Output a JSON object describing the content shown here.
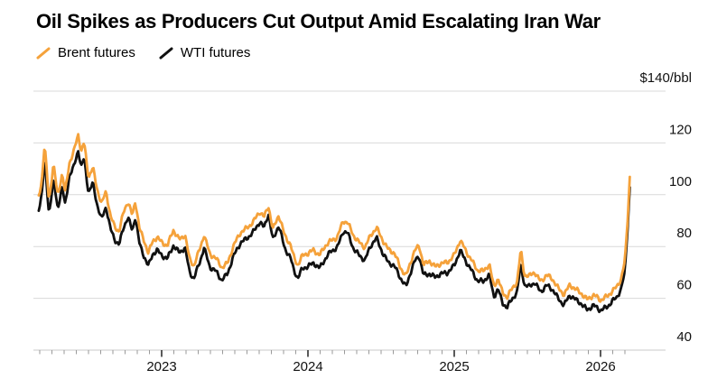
{
  "header": {
    "title": "Oil Spikes as Producers Cut Output Amid Escalating Iran War"
  },
  "legend": {
    "items": [
      {
        "label": "Brent futures",
        "color": "#F5A23B",
        "mark": "slash-icon"
      },
      {
        "label": "WTI futures",
        "color": "#111111",
        "mark": "slash-icon"
      }
    ]
  },
  "axis": {
    "unit_label": "$140/bbl",
    "y_tick_labels": [
      "120",
      "100",
      "80",
      "60",
      "40"
    ],
    "x_year_labels": [
      "2023",
      "2024",
      "2025",
      "2026"
    ]
  },
  "colors": {
    "brent": "#F5A23B",
    "wti": "#111111",
    "gridline": "#d9d9d9",
    "axis_baseline": "#c9c9c9",
    "minor_tick": "#9a9a9a",
    "major_tick": "#222222",
    "label_text": "#111111"
  },
  "chart_data": {
    "type": "line",
    "title": "Oil Spikes as Producers Cut Output Amid Escalating Iran War",
    "ylabel": "$/bbl",
    "xlabel": "",
    "x_range": [
      2022.16,
      2026.2
    ],
    "y_range": [
      40,
      140
    ],
    "y_gridlines": [
      140,
      120,
      100,
      80,
      60,
      40
    ],
    "x_year_ticks": [
      2023,
      2024,
      2025,
      2026
    ],
    "grid": "horizontal",
    "legend_position": "top-left",
    "series": [
      {
        "name": "WTI futures",
        "color": "#111111",
        "points": [
          [
            2022.16,
            94
          ],
          [
            2022.18,
            100
          ],
          [
            2022.2,
            114
          ],
          [
            2022.23,
            93
          ],
          [
            2022.26,
            106
          ],
          [
            2022.29,
            94
          ],
          [
            2022.32,
            103
          ],
          [
            2022.34,
            96
          ],
          [
            2022.37,
            108
          ],
          [
            2022.4,
            111
          ],
          [
            2022.43,
            117
          ],
          [
            2022.45,
            110
          ],
          [
            2022.47,
            114
          ],
          [
            2022.5,
            101
          ],
          [
            2022.53,
            105
          ],
          [
            2022.56,
            96
          ],
          [
            2022.59,
            90
          ],
          [
            2022.62,
            95
          ],
          [
            2022.65,
            87
          ],
          [
            2022.68,
            83
          ],
          [
            2022.71,
            81
          ],
          [
            2022.74,
            87
          ],
          [
            2022.77,
            91
          ],
          [
            2022.8,
            86
          ],
          [
            2022.82,
            92
          ],
          [
            2022.85,
            81
          ],
          [
            2022.88,
            76
          ],
          [
            2022.91,
            72
          ],
          [
            2022.94,
            77
          ],
          [
            2022.97,
            79
          ],
          [
            2023.0,
            77
          ],
          [
            2023.04,
            75
          ],
          [
            2023.08,
            80
          ],
          [
            2023.12,
            78
          ],
          [
            2023.16,
            80
          ],
          [
            2023.19,
            70
          ],
          [
            2023.22,
            67
          ],
          [
            2023.26,
            74
          ],
          [
            2023.29,
            80
          ],
          [
            2023.33,
            72
          ],
          [
            2023.37,
            70
          ],
          [
            2023.41,
            67
          ],
          [
            2023.45,
            70
          ],
          [
            2023.49,
            76
          ],
          [
            2023.54,
            81
          ],
          [
            2023.59,
            84
          ],
          [
            2023.63,
            86
          ],
          [
            2023.67,
            89
          ],
          [
            2023.7,
            87
          ],
          [
            2023.73,
            93
          ],
          [
            2023.76,
            83
          ],
          [
            2023.8,
            88
          ],
          [
            2023.84,
            79
          ],
          [
            2023.88,
            76
          ],
          [
            2023.9,
            72
          ],
          [
            2023.93,
            68
          ],
          [
            2023.96,
            71
          ],
          [
            2024.0,
            72
          ],
          [
            2024.04,
            74
          ],
          [
            2024.08,
            72
          ],
          [
            2024.12,
            75
          ],
          [
            2024.16,
            78
          ],
          [
            2024.2,
            80
          ],
          [
            2024.24,
            86
          ],
          [
            2024.27,
            85
          ],
          [
            2024.31,
            79
          ],
          [
            2024.35,
            77
          ],
          [
            2024.39,
            75
          ],
          [
            2024.43,
            80
          ],
          [
            2024.47,
            83
          ],
          [
            2024.51,
            78
          ],
          [
            2024.55,
            74
          ],
          [
            2024.59,
            72
          ],
          [
            2024.63,
            68
          ],
          [
            2024.67,
            65
          ],
          [
            2024.7,
            70
          ],
          [
            2024.73,
            74
          ],
          [
            2024.76,
            76
          ],
          [
            2024.79,
            69
          ],
          [
            2024.83,
            70
          ],
          [
            2024.87,
            68
          ],
          [
            2024.91,
            69
          ],
          [
            2024.95,
            70
          ],
          [
            2025.0,
            73
          ],
          [
            2025.04,
            78
          ],
          [
            2025.08,
            74
          ],
          [
            2025.12,
            71
          ],
          [
            2025.16,
            67
          ],
          [
            2025.2,
            66
          ],
          [
            2025.24,
            69
          ],
          [
            2025.27,
            61
          ],
          [
            2025.3,
            64
          ],
          [
            2025.33,
            58
          ],
          [
            2025.36,
            56
          ],
          [
            2025.4,
            60
          ],
          [
            2025.43,
            63
          ],
          [
            2025.455,
            74
          ],
          [
            2025.48,
            65
          ],
          [
            2025.51,
            64
          ],
          [
            2025.55,
            66
          ],
          [
            2025.59,
            63
          ],
          [
            2025.63,
            65
          ],
          [
            2025.67,
            63
          ],
          [
            2025.71,
            60
          ],
          [
            2025.75,
            58
          ],
          [
            2025.79,
            61
          ],
          [
            2025.83,
            59
          ],
          [
            2025.87,
            58
          ],
          [
            2025.91,
            56
          ],
          [
            2025.95,
            57
          ],
          [
            2026.0,
            55
          ],
          [
            2026.04,
            57
          ],
          [
            2026.08,
            59
          ],
          [
            2026.11,
            60
          ],
          [
            2026.14,
            63
          ],
          [
            2026.165,
            70
          ],
          [
            2026.185,
            87
          ],
          [
            2026.2,
            103
          ]
        ]
      },
      {
        "name": "Brent futures",
        "color": "#F5A23B",
        "points": [
          [
            2022.16,
            99
          ],
          [
            2022.18,
            105
          ],
          [
            2022.2,
            120
          ],
          [
            2022.23,
            98
          ],
          [
            2022.26,
            112
          ],
          [
            2022.29,
            99
          ],
          [
            2022.32,
            108
          ],
          [
            2022.34,
            101
          ],
          [
            2022.37,
            113
          ],
          [
            2022.4,
            117
          ],
          [
            2022.43,
            123
          ],
          [
            2022.45,
            116
          ],
          [
            2022.47,
            120
          ],
          [
            2022.5,
            107
          ],
          [
            2022.53,
            111
          ],
          [
            2022.56,
            102
          ],
          [
            2022.59,
            96
          ],
          [
            2022.62,
            101
          ],
          [
            2022.65,
            92
          ],
          [
            2022.68,
            88
          ],
          [
            2022.71,
            86
          ],
          [
            2022.74,
            93
          ],
          [
            2022.77,
            97
          ],
          [
            2022.8,
            92
          ],
          [
            2022.82,
            98
          ],
          [
            2022.85,
            87
          ],
          [
            2022.88,
            82
          ],
          [
            2022.91,
            77
          ],
          [
            2022.94,
            82
          ],
          [
            2022.97,
            84
          ],
          [
            2023.0,
            82
          ],
          [
            2023.04,
            80
          ],
          [
            2023.08,
            86
          ],
          [
            2023.12,
            83
          ],
          [
            2023.16,
            85
          ],
          [
            2023.19,
            75
          ],
          [
            2023.22,
            72
          ],
          [
            2023.26,
            79
          ],
          [
            2023.29,
            85
          ],
          [
            2023.33,
            77
          ],
          [
            2023.37,
            75
          ],
          [
            2023.41,
            72
          ],
          [
            2023.45,
            74
          ],
          [
            2023.49,
            80
          ],
          [
            2023.54,
            85
          ],
          [
            2023.59,
            88
          ],
          [
            2023.63,
            90
          ],
          [
            2023.67,
            93
          ],
          [
            2023.7,
            91
          ],
          [
            2023.73,
            96
          ],
          [
            2023.76,
            87
          ],
          [
            2023.8,
            92
          ],
          [
            2023.84,
            84
          ],
          [
            2023.88,
            81
          ],
          [
            2023.9,
            77
          ],
          [
            2023.93,
            73
          ],
          [
            2023.96,
            76
          ],
          [
            2024.0,
            77
          ],
          [
            2024.04,
            79
          ],
          [
            2024.08,
            77
          ],
          [
            2024.12,
            80
          ],
          [
            2024.16,
            82
          ],
          [
            2024.2,
            84
          ],
          [
            2024.24,
            90
          ],
          [
            2024.27,
            89
          ],
          [
            2024.31,
            84
          ],
          [
            2024.35,
            82
          ],
          [
            2024.39,
            80
          ],
          [
            2024.43,
            84
          ],
          [
            2024.47,
            87
          ],
          [
            2024.51,
            83
          ],
          [
            2024.55,
            79
          ],
          [
            2024.59,
            77
          ],
          [
            2024.63,
            72
          ],
          [
            2024.67,
            69
          ],
          [
            2024.7,
            74
          ],
          [
            2024.73,
            78
          ],
          [
            2024.76,
            80
          ],
          [
            2024.79,
            73
          ],
          [
            2024.83,
            75
          ],
          [
            2024.87,
            72
          ],
          [
            2024.91,
            73
          ],
          [
            2024.95,
            74
          ],
          [
            2025.0,
            77
          ],
          [
            2025.04,
            82
          ],
          [
            2025.08,
            78
          ],
          [
            2025.12,
            75
          ],
          [
            2025.16,
            71
          ],
          [
            2025.2,
            70
          ],
          [
            2025.24,
            73
          ],
          [
            2025.27,
            65
          ],
          [
            2025.3,
            68
          ],
          [
            2025.33,
            62
          ],
          [
            2025.36,
            60
          ],
          [
            2025.4,
            64
          ],
          [
            2025.43,
            67
          ],
          [
            2025.455,
            79
          ],
          [
            2025.48,
            69
          ],
          [
            2025.51,
            68
          ],
          [
            2025.55,
            70
          ],
          [
            2025.59,
            67
          ],
          [
            2025.63,
            69
          ],
          [
            2025.67,
            67
          ],
          [
            2025.71,
            64
          ],
          [
            2025.75,
            62
          ],
          [
            2025.79,
            65
          ],
          [
            2025.83,
            63
          ],
          [
            2025.87,
            62
          ],
          [
            2025.91,
            60
          ],
          [
            2025.95,
            61
          ],
          [
            2026.0,
            59
          ],
          [
            2026.04,
            61
          ],
          [
            2026.08,
            63
          ],
          [
            2026.11,
            64
          ],
          [
            2026.14,
            67
          ],
          [
            2026.165,
            74
          ],
          [
            2026.185,
            90
          ],
          [
            2026.2,
            107
          ]
        ]
      }
    ]
  }
}
